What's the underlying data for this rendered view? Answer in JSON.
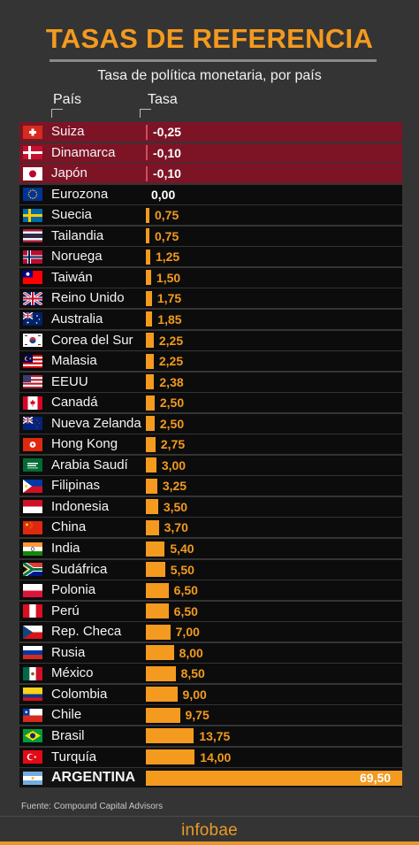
{
  "title": "TASAS DE REFERENCIA",
  "subtitle": "Tasa de política monetaria, por país",
  "col_country": "País",
  "col_rate": "Tasa",
  "source": "Fuente: Compound Capital Advisors",
  "brand": "infobae",
  "colors": {
    "accent": "#f39a1f",
    "negative_bg": "#7d1426",
    "negative_bar": "#cf4d61",
    "background": "#343434",
    "row": "#0c0c0c"
  },
  "chart_data": {
    "type": "bar",
    "orientation": "horizontal",
    "title": "TASAS DE REFERENCIA",
    "subtitle": "Tasa de política monetaria, por país",
    "xlabel": "Tasa",
    "ylabel": "País",
    "categories": [
      "Suiza",
      "Dinamarca",
      "Japón",
      "Eurozona",
      "Suecia",
      "Tailandia",
      "Noruega",
      "Taiwán",
      "Reino Unido",
      "Australia",
      "Corea del Sur",
      "Malasia",
      "EEUU",
      "Canadá",
      "Nueva Zelanda",
      "Hong Kong",
      "Arabia Saudí",
      "Filipinas",
      "Indonesia",
      "China",
      "India",
      "Sudáfrica",
      "Polonia",
      "Perú",
      "Rep. Checa",
      "Rusia",
      "México",
      "Colombia",
      "Chile",
      "Brasil",
      "Turquía",
      "ARGENTINA"
    ],
    "values": [
      -0.25,
      -0.1,
      -0.1,
      0.0,
      0.75,
      0.75,
      1.25,
      1.5,
      1.75,
      1.85,
      2.25,
      2.25,
      2.38,
      2.5,
      2.5,
      2.75,
      3.0,
      3.25,
      3.5,
      3.7,
      5.4,
      5.5,
      6.5,
      6.5,
      7.0,
      8.0,
      8.5,
      9.0,
      9.75,
      13.75,
      14.0,
      69.5
    ],
    "labels": [
      "-0,25",
      "-0,10",
      "-0,10",
      "0,00",
      "0,75",
      "0,75",
      "1,25",
      "1,50",
      "1,75",
      "1,85",
      "2,25",
      "2,25",
      "2,38",
      "2,50",
      "2,50",
      "2,75",
      "3,00",
      "3,25",
      "3,50",
      "3,70",
      "5,40",
      "5,50",
      "6,50",
      "6,50",
      "7,00",
      "8,00",
      "8,50",
      "9,00",
      "9,75",
      "13,75",
      "14,00",
      "69,50"
    ],
    "flags": [
      "switzerland",
      "denmark",
      "japan",
      "eu",
      "sweden",
      "thailand",
      "norway",
      "taiwan",
      "uk",
      "australia",
      "south-korea",
      "malaysia",
      "usa",
      "canada",
      "new-zealand",
      "hong-kong",
      "saudi-arabia",
      "philippines",
      "indonesia",
      "china",
      "india",
      "south-africa",
      "poland",
      "peru",
      "czechia",
      "russia",
      "mexico",
      "colombia",
      "chile",
      "brazil",
      "turkey",
      "argentina"
    ],
    "highlight": "ARGENTINA",
    "grid": false,
    "legend": "none"
  }
}
